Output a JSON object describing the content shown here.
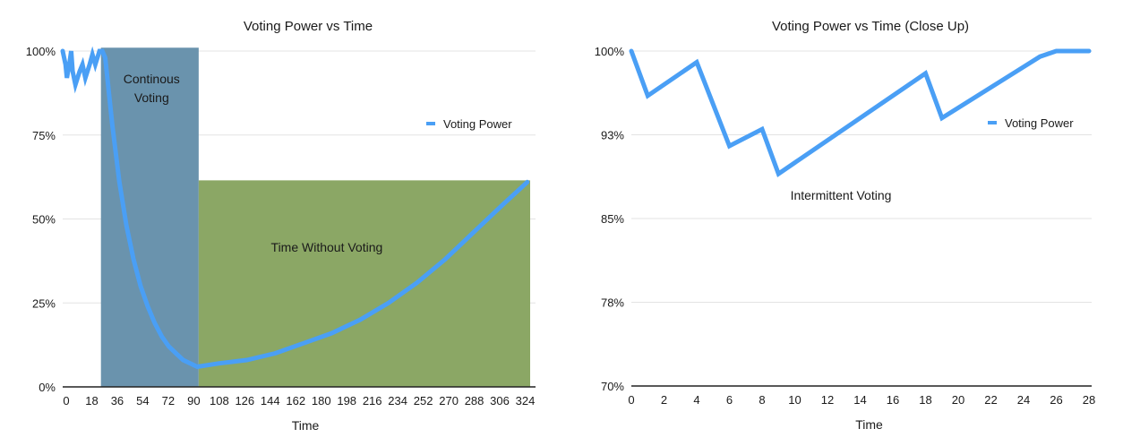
{
  "chart_data": [
    {
      "type": "line",
      "title": "Voting Power vs Time",
      "xlabel": "Time",
      "ylabel": "",
      "x_ticks": [
        "0",
        "18",
        "36",
        "54",
        "72",
        "90",
        "108",
        "126",
        "144",
        "162",
        "180",
        "198",
        "216",
        "234",
        "252",
        "270",
        "288",
        "306",
        "324"
      ],
      "y_ticks": [
        "0%",
        "25%",
        "50%",
        "75%",
        "100%"
      ],
      "xlim": [
        0,
        330
      ],
      "ylim": [
        0,
        100
      ],
      "grid": "horizontal",
      "legend": "right",
      "series": [
        {
          "name": "Voting Power",
          "color": "#4a9ff5",
          "points": [
            [
              0,
              100
            ],
            [
              2,
              96
            ],
            [
              3,
              92
            ],
            [
              5,
              97
            ],
            [
              6,
              100
            ],
            [
              7,
              94
            ],
            [
              9,
              90
            ],
            [
              12,
              94
            ],
            [
              14,
              96
            ],
            [
              16,
              92
            ],
            [
              19,
              96
            ],
            [
              21,
              99
            ],
            [
              23,
              96
            ],
            [
              26,
              100
            ],
            [
              28,
              100
            ],
            [
              30,
              98
            ],
            [
              35,
              78
            ],
            [
              40,
              61
            ],
            [
              45,
              48
            ],
            [
              50,
              38
            ],
            [
              55,
              30
            ],
            [
              60,
              24
            ],
            [
              65,
              19
            ],
            [
              70,
              15
            ],
            [
              75,
              12
            ],
            [
              80,
              10
            ],
            [
              85,
              8
            ],
            [
              90,
              7
            ],
            [
              95,
              6
            ],
            [
              110,
              7
            ],
            [
              130,
              8
            ],
            [
              150,
              10
            ],
            [
              170,
              13
            ],
            [
              190,
              16
            ],
            [
              210,
              20
            ],
            [
              230,
              25
            ],
            [
              250,
              31
            ],
            [
              270,
              38
            ],
            [
              290,
              46
            ],
            [
              310,
              54
            ],
            [
              328,
              61
            ]
          ]
        }
      ],
      "regions": [
        {
          "label": "Continous\nVoting",
          "x_start": 27,
          "x_end": 96,
          "y_top": 101,
          "color": "#6a93ad"
        },
        {
          "label": "Time Without Voting",
          "x_start": 96,
          "x_end": 330,
          "y_top": 61.5,
          "color": "#8ba765"
        }
      ]
    },
    {
      "type": "line",
      "title": "Voting Power vs Time (Close Up)",
      "xlabel": "Time",
      "ylabel": "",
      "x_ticks": [
        "0",
        "2",
        "4",
        "6",
        "8",
        "10",
        "12",
        "14",
        "16",
        "18",
        "20",
        "22",
        "24",
        "26",
        "28"
      ],
      "y_ticks": [
        "70%",
        "78%",
        "85%",
        "93%",
        "100%"
      ],
      "xlim": [
        0,
        28
      ],
      "ylim": [
        70,
        100
      ],
      "grid": "horizontal",
      "legend": "right",
      "annotation": "Intermittent Voting",
      "series": [
        {
          "name": "Voting Power",
          "color": "#4a9ff5",
          "points": [
            [
              0,
              100
            ],
            [
              1,
              96
            ],
            [
              4,
              99
            ],
            [
              6,
              91.5
            ],
            [
              8,
              93
            ],
            [
              9,
              89
            ],
            [
              18,
              98
            ],
            [
              19,
              94
            ],
            [
              25,
              99.5
            ],
            [
              26,
              100
            ],
            [
              28,
              100
            ]
          ]
        }
      ]
    }
  ]
}
